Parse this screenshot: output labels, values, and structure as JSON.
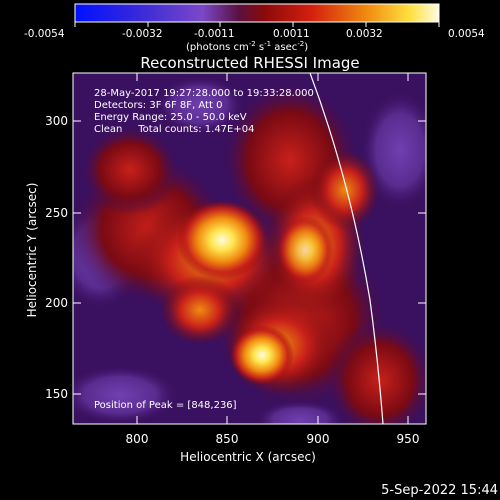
{
  "colorbar": {
    "ticks": [
      "-0.0054",
      "-0.0032",
      "-0.0011",
      "0.0011",
      "0.0032",
      "0.0054"
    ],
    "unit_main": "(photons cm",
    "unit_exp1": "-2",
    "unit_mid": " s",
    "unit_exp2": "-1",
    "unit_end": " asec",
    "unit_exp3": "-2",
    "unit_close": ")"
  },
  "title": "Reconstructed RHESSI Image",
  "info": {
    "line1": "28-May-2017 19:27:28.000 to 19:33:28.000",
    "line2": "Detectors: 3F 6F 8F, Att 0",
    "line3": "Energy Range: 25.0 - 50.0 keV",
    "line4": "Clean     Total counts: 1.47E+04",
    "peak": "Position of Peak = [848,236]"
  },
  "axes": {
    "xlabel": "Heliocentric X (arcsec)",
    "ylabel": "Heliocentric Y (arcsec)",
    "x_ticks": [
      "800",
      "850",
      "900",
      "950"
    ],
    "y_ticks": [
      "150",
      "200",
      "250",
      "300"
    ]
  },
  "footer_date": "5-Sep-2022 15:44",
  "colors": {
    "dark_purple": "#3a1060",
    "violet": "#6a3aa8",
    "red": "#c8201a",
    "orange": "#f08a10",
    "yellow": "#ffe650",
    "white_hot": "#fffbe0",
    "limb": "#ffffff"
  }
}
